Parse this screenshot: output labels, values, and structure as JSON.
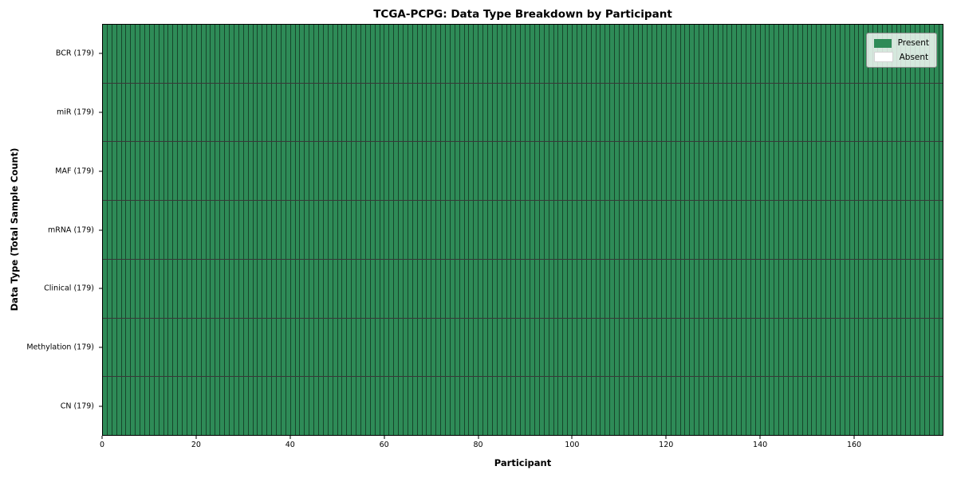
{
  "chart_data": {
    "type": "heatmap",
    "title": "TCGA-PCPG: Data Type Breakdown by Participant",
    "xlabel": "Participant",
    "ylabel": "Data Type (Total Sample Count)",
    "n_participants": 179,
    "xlim": [
      0,
      179
    ],
    "x_ticks": [
      0,
      20,
      40,
      60,
      80,
      100,
      120,
      140,
      160
    ],
    "rows": [
      {
        "label": "BCR (179)",
        "present_count": 179,
        "total": 179
      },
      {
        "label": "miR (179)",
        "present_count": 179,
        "total": 179
      },
      {
        "label": "MAF (179)",
        "present_count": 179,
        "total": 179
      },
      {
        "label": "mRNA (179)",
        "present_count": 179,
        "total": 179
      },
      {
        "label": "Clinical (179)",
        "present_count": 179,
        "total": 179
      },
      {
        "label": "Methylation (179)",
        "present_count": 179,
        "total": 179
      },
      {
        "label": "CN (179)",
        "present_count": 179,
        "total": 179
      }
    ],
    "legend": {
      "position": "upper right",
      "entries": [
        {
          "label": "Present",
          "color": "#2e8b57"
        },
        {
          "label": "Absent",
          "color": "#ffffff"
        }
      ]
    },
    "colors": {
      "present": "#2e8b57",
      "absent": "#ffffff",
      "cell_edge": "rgba(0,0,0,0.5)",
      "row_separator": "rgba(0,0,0,0.78)",
      "axis": "#000000"
    },
    "grid": "cell-borders",
    "layout": {
      "legend_position": "upper-right-inside"
    }
  }
}
